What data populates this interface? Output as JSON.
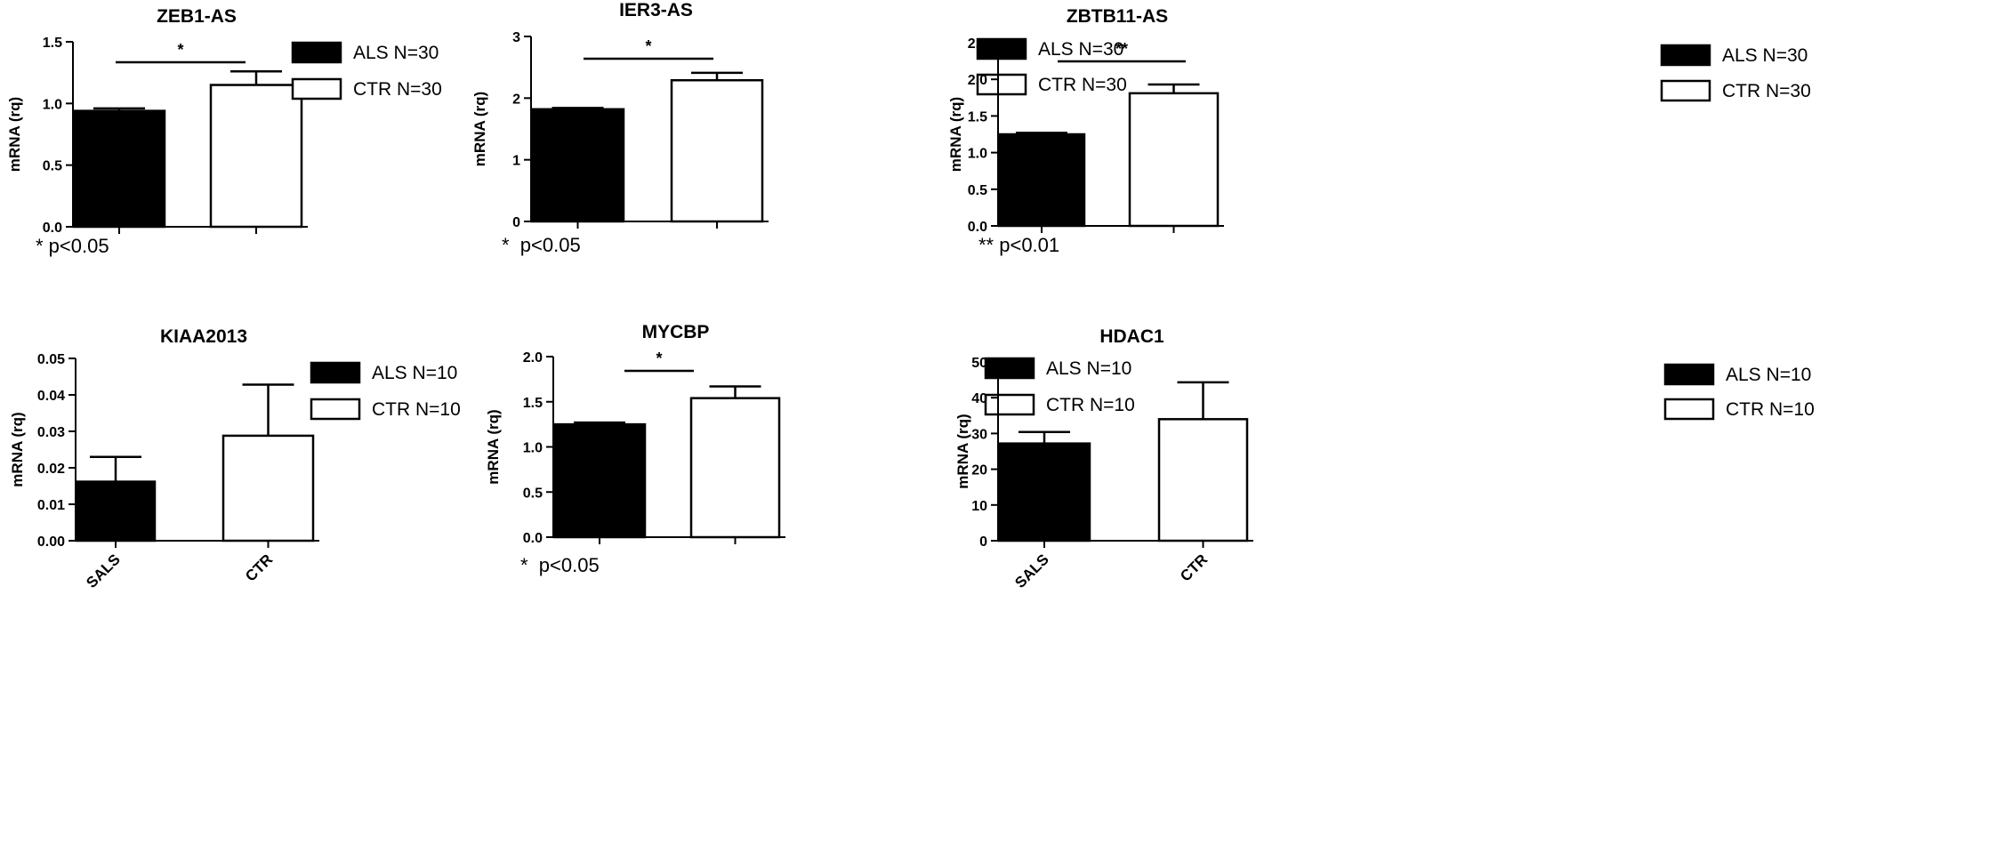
{
  "chart_data": [
    {
      "type": "bar",
      "title": "ZEB1-AS",
      "ylabel": "mRNA (rq)",
      "ylim": [
        0,
        1.5
      ],
      "yticks": [
        0.0,
        0.5,
        1.0,
        1.5
      ],
      "ytick_labels": [
        "0.0",
        "0.5",
        "1.0",
        "1.5"
      ],
      "categories": [
        "ALS",
        "CTR"
      ],
      "category_labels": [
        "",
        ""
      ],
      "values": [
        0.94,
        1.15
      ],
      "errors": [
        0.02,
        0.11
      ],
      "fills": [
        "#000000",
        "#ffffff"
      ],
      "legend": [
        "ALS N=30",
        "CTR N=30"
      ],
      "significance": "*",
      "footnote": "* p<0.05"
    },
    {
      "type": "bar",
      "title": "IER3-AS",
      "ylabel": "mRNA (rq)",
      "ylim": [
        0,
        3
      ],
      "yticks": [
        0,
        1,
        2,
        3
      ],
      "ytick_labels": [
        "0",
        "1",
        "2",
        "3"
      ],
      "categories": [
        "ALS",
        "CTR"
      ],
      "category_labels": [
        "",
        ""
      ],
      "values": [
        1.82,
        2.29
      ],
      "errors": [
        0.02,
        0.12
      ],
      "fills": [
        "#000000",
        "#ffffff"
      ],
      "legend": [
        "ALS N=30",
        "CTR N=30"
      ],
      "significance": "*",
      "footnote": "*  p<0.05"
    },
    {
      "type": "bar",
      "title": "ZBTB11-AS",
      "ylabel": "mRNA (rq)",
      "ylim": [
        0,
        2.5
      ],
      "yticks": [
        0.0,
        0.5,
        1.0,
        1.5,
        2.0,
        2.5
      ],
      "ytick_labels": [
        "0.0",
        "0.5",
        "1.0",
        "1.5",
        "2.0",
        "2.5"
      ],
      "categories": [
        "ALS",
        "CTR"
      ],
      "category_labels": [
        "",
        ""
      ],
      "values": [
        1.25,
        1.81
      ],
      "errors": [
        0.02,
        0.12
      ],
      "fills": [
        "#000000",
        "#ffffff"
      ],
      "legend": [
        "ALS N=30",
        "CTR N=30"
      ],
      "significance": "**",
      "footnote": "** p<0.01"
    },
    {
      "type": "bar",
      "title": "KIAA2013",
      "ylabel": "mRNA (rq)",
      "ylim": [
        0,
        0.05
      ],
      "yticks": [
        0.0,
        0.01,
        0.02,
        0.03,
        0.04,
        0.05
      ],
      "ytick_labels": [
        "0.00",
        "0.01",
        "0.02",
        "0.03",
        "0.04",
        "0.05"
      ],
      "categories": [
        "SALS",
        "CTR"
      ],
      "category_labels": [
        "SALS",
        "CTR"
      ],
      "values": [
        0.0162,
        0.0288
      ],
      "errors": [
        0.0068,
        0.014
      ],
      "fills": [
        "#000000",
        "#ffffff"
      ],
      "legend": [
        "ALS N=10",
        "CTR N=10"
      ],
      "significance": "",
      "footnote": ""
    },
    {
      "type": "bar",
      "title": "MYCBP",
      "ylabel": "mRNA (rq)",
      "ylim": [
        0,
        2.0
      ],
      "yticks": [
        0.0,
        0.5,
        1.0,
        1.5,
        2.0
      ],
      "ytick_labels": [
        "0.0",
        "0.5",
        "1.0",
        "1.5",
        "2.0"
      ],
      "categories": [
        "ALS",
        "CTR"
      ],
      "category_labels": [
        "",
        ""
      ],
      "values": [
        1.25,
        1.54
      ],
      "errors": [
        0.02,
        0.13
      ],
      "fills": [
        "#000000",
        "#ffffff"
      ],
      "legend": [
        "ALS N=10",
        "CTR N=10"
      ],
      "significance": "*",
      "footnote": "*  p<0.05"
    },
    {
      "type": "bar",
      "title": "HDAC1",
      "ylabel": "mRNA (rq)",
      "ylim": [
        0,
        50
      ],
      "yticks": [
        0,
        10,
        20,
        30,
        40,
        50
      ],
      "ytick_labels": [
        "0",
        "10",
        "20",
        "30",
        "40",
        "50"
      ],
      "categories": [
        "SALS",
        "CTR"
      ],
      "category_labels": [
        "SALS",
        "CTR"
      ],
      "values": [
        27.2,
        34.0
      ],
      "errors": [
        3.2,
        10.3
      ],
      "fills": [
        "#000000",
        "#ffffff"
      ],
      "legend": [
        "ALS N=10",
        "CTR N=10"
      ],
      "significance": "",
      "footnote": ""
    }
  ]
}
